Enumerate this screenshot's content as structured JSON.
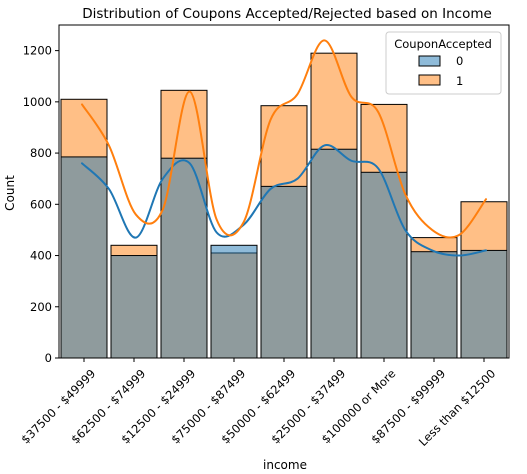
{
  "chart_data": {
    "type": "bar",
    "title": "Distribution of Coupons Accepted/Rejected based on Income",
    "xlabel": "income",
    "ylabel": "Count",
    "ylim": [
      0,
      1300
    ],
    "yticks": [
      0,
      200,
      400,
      600,
      800,
      1000,
      1200
    ],
    "grid": false,
    "categories": [
      "$37500 - $49999",
      "$62500 - $74999",
      "$12500 - $24999",
      "$75000 - $87499",
      "$50000 - $62499",
      "$25000 - $37499",
      "$100000 or More",
      "$87500 - $99999",
      "Less than $12500"
    ],
    "tick_labels": [
      "$37500 - $49999",
      "$62500 - $74999",
      "$12500 - $24999",
      "$75000 - $87499",
      "$50000 - $62499",
      "$25000 - $37499",
      "$100000 or More",
      "$87500 - $99999",
      "Less than $12500"
    ],
    "series": [
      {
        "name": "0",
        "values": [
          785,
          400,
          780,
          440,
          670,
          815,
          725,
          415,
          420
        ],
        "color": "#1f77b4"
      },
      {
        "name": "1",
        "values": [
          1010,
          440,
          1045,
          410,
          985,
          1190,
          990,
          470,
          610
        ],
        "color": "#ff7f0e"
      }
    ],
    "kde": [
      {
        "name": "0",
        "color": "#1f77b4",
        "values": [
          760,
          660,
          470,
          700,
          760,
          490,
          520,
          660,
          700,
          830,
          770,
          740,
          500,
          420,
          400,
          420
        ]
      },
      {
        "name": "1",
        "color": "#ff7f0e",
        "values": [
          990,
          830,
          560,
          580,
          1040,
          540,
          530,
          930,
          1030,
          1240,
          1020,
          960,
          640,
          500,
          480,
          620
        ]
      }
    ],
    "legend": {
      "title": "CouponAccepted",
      "entries": [
        "0",
        "1"
      ],
      "placement": "top-right"
    }
  }
}
